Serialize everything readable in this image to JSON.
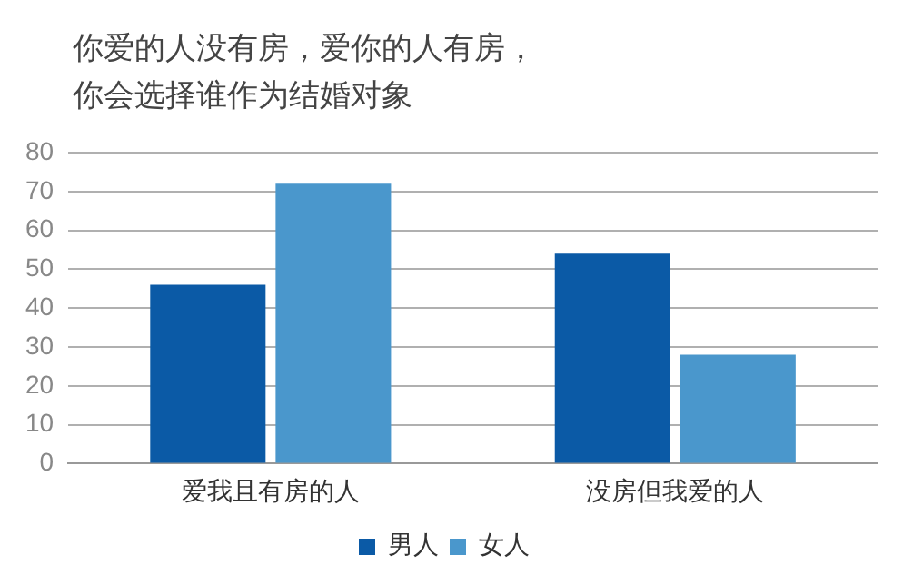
{
  "chart_data": {
    "type": "bar",
    "title": "你爱的人没有房，爱你的人有房，你会选择谁作为结婚对象",
    "categories": [
      "爱我且有房的人",
      "没房但我爱的人"
    ],
    "series": [
      {
        "name": "男人",
        "color": "#0b5aa6",
        "values": [
          46,
          54
        ]
      },
      {
        "name": "女人",
        "color": "#4a97cc",
        "values": [
          72,
          28
        ]
      }
    ],
    "ylim": [
      0,
      80
    ],
    "yticks": [
      0,
      10,
      20,
      30,
      40,
      50,
      60,
      70,
      80
    ],
    "grid": "y",
    "legend": "bottom"
  }
}
